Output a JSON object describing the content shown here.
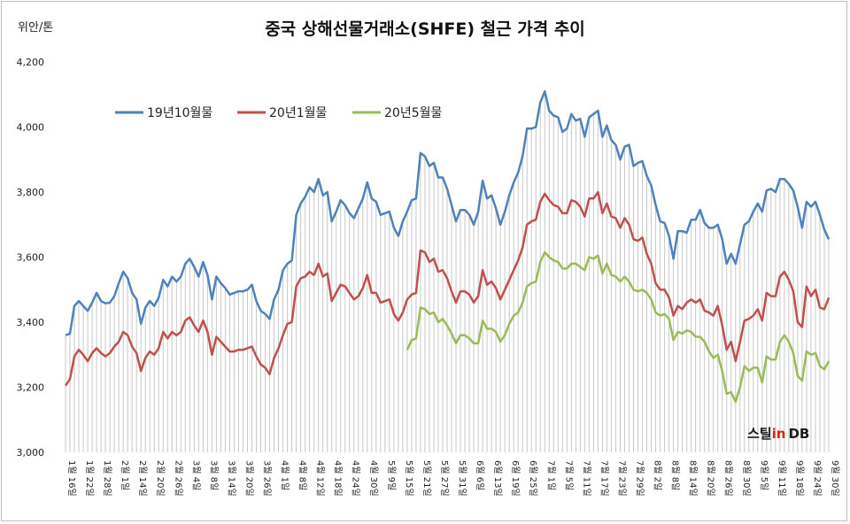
{
  "chart_data": {
    "type": "line",
    "title": "중국 상해선물거래소(SHFE) 철근 가격 추이",
    "ylabel": "위안/톤",
    "ylim": [
      3000,
      4200
    ],
    "yticks": [
      "3,000",
      "3,200",
      "3,400",
      "3,600",
      "3,800",
      "4,000",
      "4,200"
    ],
    "ytick_values": [
      3000,
      3200,
      3400,
      3600,
      3800,
      4000,
      4200
    ],
    "grid": "vertical bars under series",
    "legend_position": "top-left",
    "x_labels": [
      "1월 16일",
      "1월 22일",
      "1월 28일",
      "2월 1일",
      "2월 14일",
      "2월 20일",
      "2월 26일",
      "3월 4일",
      "3월 8일",
      "3월 14일",
      "3월 20일",
      "3월 26일",
      "4월 1일",
      "4월 8일",
      "4월 12일",
      "4월 18일",
      "4월 24일",
      "4월 30일",
      "5월 9일",
      "5월 15일",
      "5월 21일",
      "5월 27일",
      "5월 31일",
      "6월 6일",
      "6월 13일",
      "6월 19일",
      "6월 25일",
      "7월 1일",
      "7월 5일",
      "7월 11일",
      "7월 17일",
      "7월 23일",
      "7월 29일",
      "8월 2일",
      "8월 8일",
      "8월 14일",
      "8월 20일",
      "8월 26일",
      "8월 30일",
      "9월 5일",
      "9월 11일",
      "9월 18일",
      "9월 24일",
      "9월 30일"
    ],
    "series": [
      {
        "name": "19년10월물",
        "color": "#4f81bd",
        "values": [
          3360,
          3365,
          3450,
          3465,
          3450,
          3435,
          3460,
          3490,
          3465,
          3458,
          3460,
          3480,
          3520,
          3555,
          3535,
          3490,
          3470,
          3395,
          3445,
          3465,
          3450,
          3475,
          3530,
          3510,
          3540,
          3525,
          3540,
          3580,
          3595,
          3570,
          3540,
          3585,
          3545,
          3470,
          3540,
          3520,
          3505,
          3485,
          3490,
          3495,
          3495,
          3500,
          3515,
          3465,
          3435,
          3425,
          3410,
          3470,
          3500,
          3560,
          3580,
          3590,
          3730,
          3765,
          3785,
          3815,
          3800,
          3840,
          3790,
          3800,
          3710,
          3740,
          3775,
          3760,
          3735,
          3720,
          3750,
          3780,
          3830,
          3780,
          3770,
          3730,
          3735,
          3740,
          3690,
          3665,
          3710,
          3740,
          3775,
          3780,
          3920,
          3910,
          3880,
          3890,
          3845,
          3845,
          3810,
          3760,
          3710,
          3745,
          3745,
          3730,
          3700,
          3740,
          3835,
          3780,
          3790,
          3750,
          3700,
          3740,
          3790,
          3830,
          3860,
          3910,
          3995,
          3995,
          4000,
          4075,
          4110,
          4050,
          4035,
          4030,
          3985,
          3995,
          4040,
          4020,
          4025,
          3970,
          4030,
          4040,
          4050,
          3970,
          4005,
          3960,
          3945,
          3900,
          3940,
          3945,
          3880,
          3890,
          3895,
          3850,
          3820,
          3760,
          3710,
          3705,
          3665,
          3595,
          3680,
          3680,
          3675,
          3715,
          3715,
          3745,
          3705,
          3690,
          3690,
          3700,
          3655,
          3580,
          3610,
          3580,
          3640,
          3700,
          3710,
          3740,
          3765,
          3740,
          3805,
          3810,
          3800,
          3840,
          3840,
          3825,
          3805,
          3755,
          3690,
          3770,
          3755,
          3770,
          3730,
          3685,
          3655
        ]
      },
      {
        "name": "20년1월물",
        "color": "#c0504d",
        "values": [
          3205,
          3225,
          3295,
          3315,
          3300,
          3280,
          3305,
          3320,
          3305,
          3295,
          3305,
          3325,
          3340,
          3370,
          3360,
          3325,
          3305,
          3250,
          3290,
          3310,
          3300,
          3320,
          3370,
          3350,
          3370,
          3360,
          3370,
          3405,
          3415,
          3390,
          3370,
          3405,
          3370,
          3300,
          3355,
          3340,
          3325,
          3310,
          3310,
          3315,
          3315,
          3320,
          3325,
          3295,
          3270,
          3260,
          3240,
          3290,
          3320,
          3360,
          3395,
          3400,
          3510,
          3535,
          3540,
          3555,
          3545,
          3580,
          3540,
          3550,
          3465,
          3490,
          3515,
          3510,
          3490,
          3470,
          3480,
          3505,
          3545,
          3490,
          3490,
          3460,
          3465,
          3470,
          3425,
          3405,
          3430,
          3470,
          3485,
          3490,
          3620,
          3615,
          3585,
          3595,
          3555,
          3560,
          3535,
          3495,
          3460,
          3495,
          3495,
          3485,
          3460,
          3480,
          3560,
          3515,
          3525,
          3505,
          3470,
          3500,
          3530,
          3560,
          3590,
          3630,
          3700,
          3710,
          3715,
          3770,
          3795,
          3775,
          3760,
          3755,
          3735,
          3735,
          3775,
          3770,
          3755,
          3725,
          3780,
          3780,
          3800,
          3735,
          3765,
          3725,
          3720,
          3690,
          3720,
          3700,
          3655,
          3650,
          3660,
          3610,
          3580,
          3520,
          3500,
          3500,
          3475,
          3420,
          3450,
          3440,
          3460,
          3470,
          3460,
          3470,
          3435,
          3430,
          3420,
          3450,
          3390,
          3315,
          3340,
          3280,
          3340,
          3405,
          3410,
          3420,
          3440,
          3405,
          3490,
          3480,
          3480,
          3540,
          3555,
          3530,
          3495,
          3400,
          3385,
          3510,
          3480,
          3500,
          3445,
          3440,
          3475
        ]
      },
      {
        "name": "20년5월물",
        "color": "#9bbb59",
        "values": [
          null,
          null,
          null,
          null,
          null,
          null,
          null,
          null,
          null,
          null,
          null,
          null,
          null,
          null,
          null,
          null,
          null,
          null,
          null,
          null,
          null,
          null,
          null,
          null,
          null,
          null,
          null,
          null,
          null,
          null,
          null,
          null,
          null,
          null,
          null,
          null,
          null,
          null,
          null,
          null,
          null,
          null,
          null,
          null,
          null,
          null,
          null,
          null,
          null,
          null,
          null,
          null,
          null,
          null,
          null,
          null,
          null,
          null,
          null,
          null,
          null,
          null,
          null,
          null,
          null,
          null,
          null,
          null,
          null,
          null,
          null,
          null,
          null,
          null,
          null,
          null,
          null,
          3315,
          3345,
          3350,
          3445,
          3440,
          3425,
          3430,
          3400,
          3410,
          3390,
          3365,
          3335,
          3360,
          3360,
          3350,
          3335,
          3335,
          3405,
          3380,
          3380,
          3370,
          3340,
          3360,
          3395,
          3420,
          3430,
          3460,
          3510,
          3520,
          3525,
          3585,
          3615,
          3600,
          3590,
          3585,
          3565,
          3565,
          3580,
          3580,
          3570,
          3560,
          3600,
          3595,
          3605,
          3550,
          3580,
          3545,
          3540,
          3525,
          3540,
          3525,
          3500,
          3495,
          3500,
          3490,
          3470,
          3430,
          3420,
          3425,
          3410,
          3345,
          3370,
          3365,
          3375,
          3370,
          3355,
          3355,
          3340,
          3310,
          3290,
          3300,
          3250,
          3180,
          3185,
          3155,
          3200,
          3265,
          3250,
          3260,
          3260,
          3215,
          3295,
          3285,
          3285,
          3340,
          3360,
          3340,
          3305,
          3235,
          3220,
          3310,
          3300,
          3305,
          3265,
          3255,
          3280
        ]
      }
    ]
  },
  "logo": {
    "part1": "스틸",
    "part2": "in",
    "part3": "DB"
  }
}
